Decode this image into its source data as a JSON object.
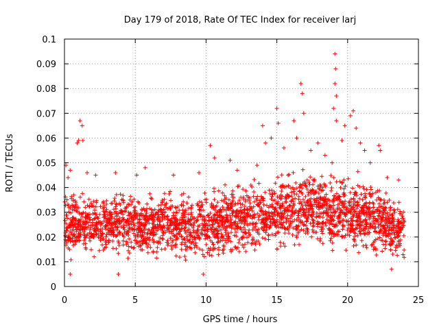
{
  "chart_data": {
    "type": "scatter",
    "title": "Day 179 of 2018, Rate Of TEC Index for receiver larj",
    "xlabel": "GPS time / hours",
    "ylabel": "ROTI / TECUs",
    "xlim": [
      0,
      25
    ],
    "ylim": [
      0,
      0.1
    ],
    "xticks": [
      {
        "value": 0,
        "label": "0"
      },
      {
        "value": 5,
        "label": "5"
      },
      {
        "value": 10,
        "label": "10"
      },
      {
        "value": 15,
        "label": "15"
      },
      {
        "value": 20,
        "label": "20"
      },
      {
        "value": 25,
        "label": "25"
      }
    ],
    "yticks": [
      {
        "value": 0,
        "label": "0"
      },
      {
        "value": 0.01,
        "label": "0.01"
      },
      {
        "value": 0.02,
        "label": "0.02"
      },
      {
        "value": 0.03,
        "label": "0.03"
      },
      {
        "value": 0.04,
        "label": "0.04"
      },
      {
        "value": 0.05,
        "label": "0.05"
      },
      {
        "value": 0.06,
        "label": "0.06"
      },
      {
        "value": 0.07,
        "label": "0.07"
      },
      {
        "value": 0.08,
        "label": "0.08"
      },
      {
        "value": 0.09,
        "label": "0.09"
      },
      {
        "value": 0.1,
        "label": "0.1"
      }
    ],
    "grid": true,
    "marker": "plus",
    "color": "#ff0000",
    "data_range": {
      "x_min": 0,
      "x_max": 24
    },
    "series": [
      {
        "name": "ROTI",
        "band": {
          "x": [
            0,
            2,
            4,
            6,
            8,
            10,
            12,
            14,
            16,
            18,
            20,
            22,
            24
          ],
          "y_low": [
            0.008,
            0.01,
            0.01,
            0.01,
            0.01,
            0.008,
            0.01,
            0.011,
            0.012,
            0.012,
            0.01,
            0.01,
            0.008
          ],
          "y_high": [
            0.04,
            0.04,
            0.04,
            0.04,
            0.04,
            0.042,
            0.045,
            0.045,
            0.05,
            0.05,
            0.05,
            0.045,
            0.035
          ]
        },
        "peaks": [
          {
            "x": 0.1,
            "y": 0.049
          },
          {
            "x": 0.25,
            "y": 0.044
          },
          {
            "x": 0.4,
            "y": 0.047
          },
          {
            "x": 1.0,
            "y": 0.059
          },
          {
            "x": 1.1,
            "y": 0.067
          },
          {
            "x": 1.25,
            "y": 0.065
          },
          {
            "x": 1.3,
            "y": 0.059
          },
          {
            "x": 0.9,
            "y": 0.058
          },
          {
            "x": 1.6,
            "y": 0.046
          },
          {
            "x": 2.2,
            "y": 0.045
          },
          {
            "x": 3.6,
            "y": 0.046
          },
          {
            "x": 5.1,
            "y": 0.045
          },
          {
            "x": 5.7,
            "y": 0.048
          },
          {
            "x": 7.7,
            "y": 0.045
          },
          {
            "x": 9.5,
            "y": 0.046
          },
          {
            "x": 10.3,
            "y": 0.057
          },
          {
            "x": 10.6,
            "y": 0.052
          },
          {
            "x": 11.7,
            "y": 0.051
          },
          {
            "x": 12.2,
            "y": 0.047
          },
          {
            "x": 13.6,
            "y": 0.049
          },
          {
            "x": 14.0,
            "y": 0.065
          },
          {
            "x": 14.2,
            "y": 0.058
          },
          {
            "x": 14.6,
            "y": 0.06
          },
          {
            "x": 15.0,
            "y": 0.072
          },
          {
            "x": 15.1,
            "y": 0.066
          },
          {
            "x": 15.5,
            "y": 0.056
          },
          {
            "x": 16.2,
            "y": 0.067
          },
          {
            "x": 16.4,
            "y": 0.06
          },
          {
            "x": 16.7,
            "y": 0.082
          },
          {
            "x": 16.8,
            "y": 0.078
          },
          {
            "x": 16.9,
            "y": 0.07
          },
          {
            "x": 17.4,
            "y": 0.055
          },
          {
            "x": 17.9,
            "y": 0.058
          },
          {
            "x": 18.4,
            "y": 0.053
          },
          {
            "x": 18.9,
            "y": 0.05
          },
          {
            "x": 19.0,
            "y": 0.072
          },
          {
            "x": 19.1,
            "y": 0.094
          },
          {
            "x": 19.15,
            "y": 0.088
          },
          {
            "x": 19.1,
            "y": 0.082
          },
          {
            "x": 19.2,
            "y": 0.077
          },
          {
            "x": 19.2,
            "y": 0.067
          },
          {
            "x": 19.6,
            "y": 0.059
          },
          {
            "x": 19.8,
            "y": 0.065
          },
          {
            "x": 20.2,
            "y": 0.069
          },
          {
            "x": 20.4,
            "y": 0.071
          },
          {
            "x": 20.6,
            "y": 0.064
          },
          {
            "x": 20.9,
            "y": 0.058
          },
          {
            "x": 21.2,
            "y": 0.055
          },
          {
            "x": 21.6,
            "y": 0.05
          },
          {
            "x": 22.2,
            "y": 0.057
          },
          {
            "x": 22.3,
            "y": 0.055
          },
          {
            "x": 22.8,
            "y": 0.044
          },
          {
            "x": 23.6,
            "y": 0.043
          },
          {
            "x": 0.4,
            "y": 0.005
          },
          {
            "x": 3.8,
            "y": 0.005
          },
          {
            "x": 9.8,
            "y": 0.005
          },
          {
            "x": 23.1,
            "y": 0.007
          }
        ]
      }
    ]
  }
}
